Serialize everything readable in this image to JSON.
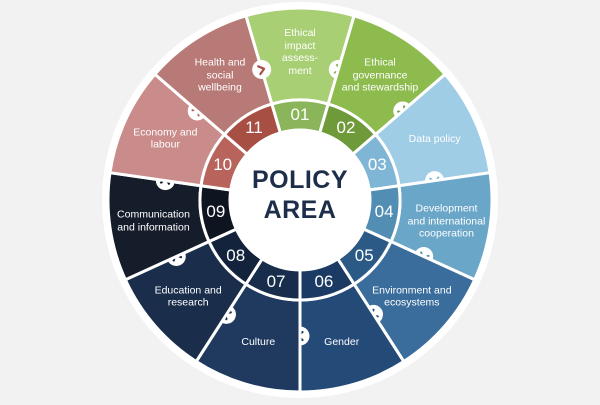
{
  "center": {
    "line1": "POLICY",
    "line2": "AREA"
  },
  "segments": [
    {
      "number": "01",
      "label": "Ethical\nimpact\nassess-\nment",
      "color": "#a8cf74",
      "inner_color": "#8ab55a"
    },
    {
      "number": "02",
      "label": "Ethical\ngovernance\nand stewardship",
      "color": "#8dbb4e",
      "inner_color": "#6f9a3a"
    },
    {
      "number": "03",
      "label": "Data policy",
      "color": "#9fcde6",
      "inner_color": "#7fb6d6"
    },
    {
      "number": "04",
      "label": "Development\nand international\ncooperation",
      "color": "#6aa6c8",
      "inner_color": "#528eb4"
    },
    {
      "number": "05",
      "label": "Environment and\necosystems",
      "color": "#3a6d9c",
      "inner_color": "#2c5a86"
    },
    {
      "number": "06",
      "label": "Gender",
      "color": "#244a78",
      "inner_color": "#1b3b64"
    },
    {
      "number": "07",
      "label": "Culture",
      "color": "#1f3a5e",
      "inner_color": "#172d4b"
    },
    {
      "number": "08",
      "label": "Education and\nresearch",
      "color": "#1a2e4c",
      "inner_color": "#13233b"
    },
    {
      "number": "09",
      "label": "Communication\nand information",
      "color": "#151d2b",
      "inner_color": "#0f1520"
    },
    {
      "number": "10",
      "label": "Economy and\nlabour",
      "color": "#c98c8a",
      "inner_color": "#b8645c"
    },
    {
      "number": "11",
      "label": "Health and\nsocial\nwellbeing",
      "color": "#b87a77",
      "inner_color": "#a84f44"
    }
  ]
}
